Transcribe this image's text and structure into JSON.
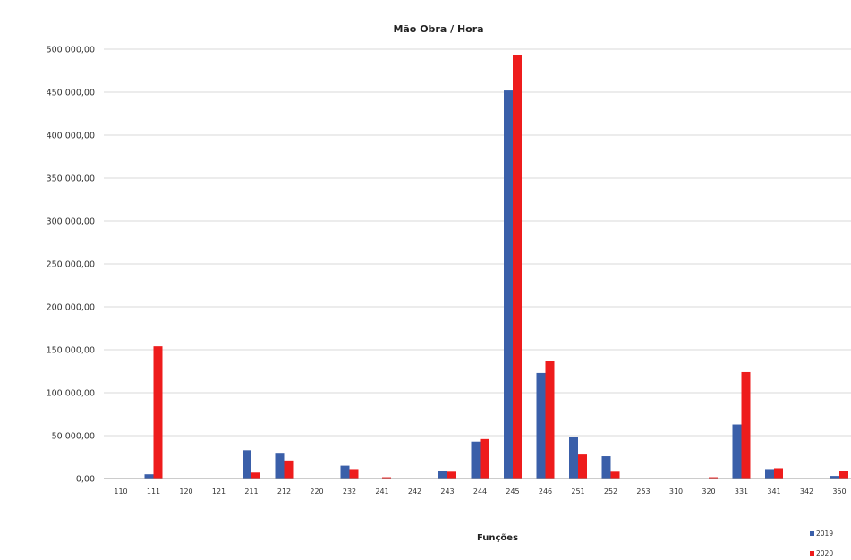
{
  "chart_data": {
    "type": "bar",
    "title": "Mão Obra / Hora",
    "xlabel": "Funções",
    "ylabel": "",
    "ylim": [
      0,
      500000
    ],
    "yticks": [
      0,
      50000,
      100000,
      150000,
      200000,
      250000,
      300000,
      350000,
      400000,
      450000,
      500000
    ],
    "ytick_labels": [
      "0,00",
      "50 000,00",
      "100 000,00",
      "150 000,00",
      "200 000,00",
      "250 000,00",
      "300 000,00",
      "350 000,00",
      "400 000,00",
      "450 000,00",
      "500 000,00"
    ],
    "grid": true,
    "legend_position": "bottom-right",
    "categories": [
      "110",
      "111",
      "120",
      "121",
      "211",
      "212",
      "220",
      "232",
      "241",
      "242",
      "243",
      "244",
      "245",
      "246",
      "251",
      "252",
      "253",
      "310",
      "320",
      "331",
      "341",
      "342",
      "350"
    ],
    "series": [
      {
        "name": "2019",
        "color": "#3a5fa9",
        "values": [
          500,
          5000,
          0,
          300,
          33000,
          30000,
          0,
          15000,
          500,
          0,
          9000,
          43000,
          452000,
          123000,
          48000,
          26000,
          0,
          0,
          0,
          63000,
          11000,
          0,
          3000
        ]
      },
      {
        "name": "2020",
        "color": "#ee1c1c",
        "values": [
          0,
          154000,
          0,
          0,
          7000,
          21000,
          0,
          11000,
          1500,
          0,
          8000,
          46000,
          493000,
          137000,
          28000,
          8000,
          0,
          0,
          1500,
          124000,
          12000,
          0,
          9000
        ]
      }
    ]
  }
}
